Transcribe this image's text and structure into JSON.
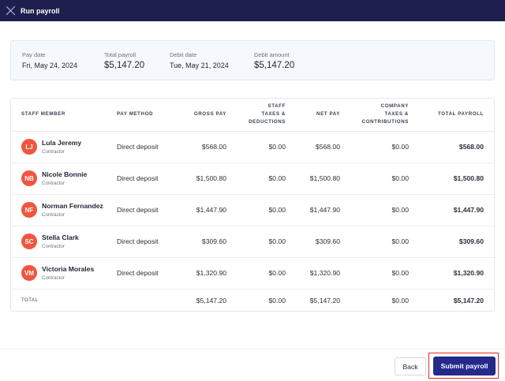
{
  "header": {
    "title": "Run payroll",
    "close_icon": "close-icon"
  },
  "summary": {
    "pay_date": {
      "label": "Pay date",
      "value": "Fri, May 24, 2024"
    },
    "total_payroll": {
      "label": "Total payroll",
      "value": "$5,147.20"
    },
    "debit_date": {
      "label": "Debit date",
      "value": "Tue, May 21, 2024"
    },
    "debit_amount": {
      "label": "Debit amount",
      "value": "$5,147.20"
    }
  },
  "table": {
    "headers": {
      "staff": "STAFF MEMBER",
      "method": "PAY METHOD",
      "gross": "GROSS PAY",
      "staff_taxes_1": "STAFF",
      "staff_taxes_2": "TAXES &",
      "staff_taxes_3": "DEDUCTIONS",
      "net": "NET PAY",
      "company_taxes_1": "COMPANY",
      "company_taxes_2": "TAXES &",
      "company_taxes_3": "CONTRIBUTIONS",
      "total": "TOTAL PAYROLL"
    },
    "rows": [
      {
        "initials": "LJ",
        "name": "Lula Jeremy",
        "role": "Contractor",
        "method": "Direct deposit",
        "gross": "$568.00",
        "staff_taxes": "$0.00",
        "net": "$568.00",
        "company_taxes": "$0.00",
        "total": "$568.00"
      },
      {
        "initials": "NB",
        "name": "Nicole Bonnie",
        "role": "Contractor",
        "method": "Direct deposit",
        "gross": "$1,500.80",
        "staff_taxes": "$0.00",
        "net": "$1,500.80",
        "company_taxes": "$0.00",
        "total": "$1,500.80"
      },
      {
        "initials": "NF",
        "name": "Norman Fernandez",
        "role": "Contractor",
        "method": "Direct deposit",
        "gross": "$1,447.90",
        "staff_taxes": "$0.00",
        "net": "$1,447.90",
        "company_taxes": "$0.00",
        "total": "$1,447.90"
      },
      {
        "initials": "SC",
        "name": "Stella Clark",
        "role": "Contractor",
        "method": "Direct deposit",
        "gross": "$309.60",
        "staff_taxes": "$0.00",
        "net": "$309.60",
        "company_taxes": "$0.00",
        "total": "$309.60"
      },
      {
        "initials": "VM",
        "name": "Victoria Morales",
        "role": "Contractor",
        "method": "Direct deposit",
        "gross": "$1,320.90",
        "staff_taxes": "$0.00",
        "net": "$1,320.90",
        "company_taxes": "$0.00",
        "total": "$1,320.90"
      }
    ],
    "totals": {
      "label": "TOTAL",
      "gross": "$5,147.20",
      "staff_taxes": "$0.00",
      "net": "$5,147.20",
      "company_taxes": "$0.00",
      "total": "$5,147.20"
    }
  },
  "footer": {
    "back_label": "Back",
    "submit_label": "Submit payroll"
  },
  "colors": {
    "header_bg": "#1d1f4f",
    "accent": "#232a8c",
    "avatar": "#f0563f",
    "highlight": "#e52a2a"
  }
}
